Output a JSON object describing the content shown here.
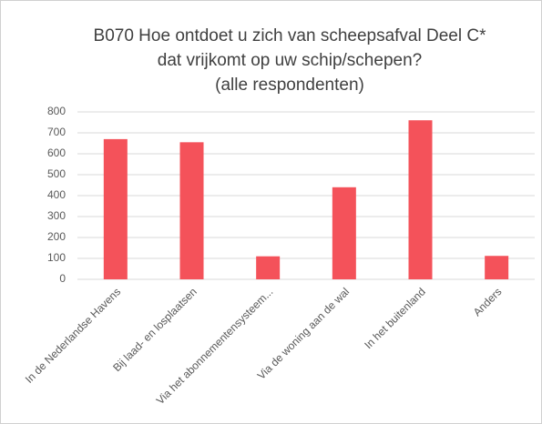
{
  "chart_data": {
    "type": "bar",
    "title": [
      "B070 Hoe ontdoet u zich van scheepsafval Deel C*",
      "dat vrijkomt op uw schip/schepen?",
      "(alle respondenten)"
    ],
    "categories": [
      "In de Nederlandse Havens",
      "Bij laad- en losplaatsen",
      "Via het abonnementensysteem...",
      "Via de woning aan de wal",
      "In het buitenland",
      "Anders"
    ],
    "values": [
      670,
      655,
      110,
      440,
      760,
      112
    ],
    "color": "#f4525a",
    "ylim": [
      0,
      800
    ],
    "yticks": [
      0,
      100,
      200,
      300,
      400,
      500,
      600,
      700,
      800
    ],
    "grid": true
  }
}
